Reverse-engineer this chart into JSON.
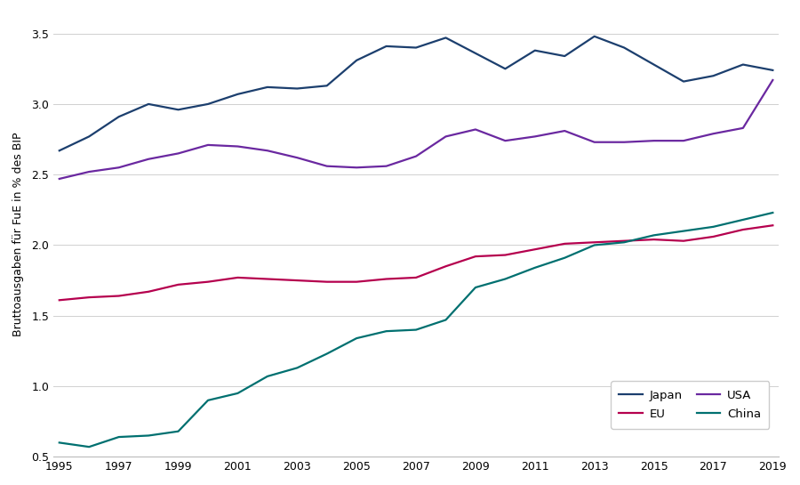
{
  "years": [
    1995,
    1996,
    1997,
    1998,
    1999,
    2000,
    2001,
    2002,
    2003,
    2004,
    2005,
    2006,
    2007,
    2008,
    2009,
    2010,
    2011,
    2012,
    2013,
    2014,
    2015,
    2016,
    2017,
    2018,
    2019
  ],
  "japan": [
    2.67,
    2.77,
    2.91,
    3.0,
    2.96,
    3.0,
    3.07,
    3.12,
    3.11,
    3.13,
    3.31,
    3.41,
    3.4,
    3.47,
    3.36,
    3.25,
    3.38,
    3.34,
    3.48,
    3.4,
    3.28,
    3.16,
    3.2,
    3.28,
    3.24
  ],
  "usa": [
    2.47,
    2.52,
    2.55,
    2.61,
    2.65,
    2.71,
    2.7,
    2.67,
    2.62,
    2.56,
    2.55,
    2.56,
    2.63,
    2.77,
    2.82,
    2.74,
    2.77,
    2.81,
    2.73,
    2.73,
    2.74,
    2.74,
    2.79,
    2.83,
    3.17
  ],
  "eu": [
    1.61,
    1.63,
    1.64,
    1.67,
    1.72,
    1.74,
    1.77,
    1.76,
    1.75,
    1.74,
    1.74,
    1.76,
    1.77,
    1.85,
    1.92,
    1.93,
    1.97,
    2.01,
    2.02,
    2.03,
    2.04,
    2.03,
    2.06,
    2.11,
    2.14
  ],
  "china": [
    0.6,
    0.57,
    0.64,
    0.65,
    0.68,
    0.9,
    0.95,
    1.07,
    1.13,
    1.23,
    1.34,
    1.39,
    1.4,
    1.47,
    1.7,
    1.76,
    1.84,
    1.91,
    2.0,
    2.02,
    2.07,
    2.1,
    2.13,
    2.18,
    2.23
  ],
  "japan_color": "#1c3f6e",
  "usa_color": "#6a28a0",
  "eu_color": "#b5004e",
  "china_color": "#007070",
  "ylabel": "Bruttoausgaben für FuE in % des BIP",
  "ylim": [
    0.5,
    3.65
  ],
  "yticks": [
    0.5,
    1.0,
    1.5,
    2.0,
    2.5,
    3.0,
    3.5
  ],
  "background_color": "#ffffff",
  "grid_color": "#d0d0d0",
  "linewidth": 1.6,
  "figsize": [
    9.0,
    5.45
  ],
  "dpi": 100
}
